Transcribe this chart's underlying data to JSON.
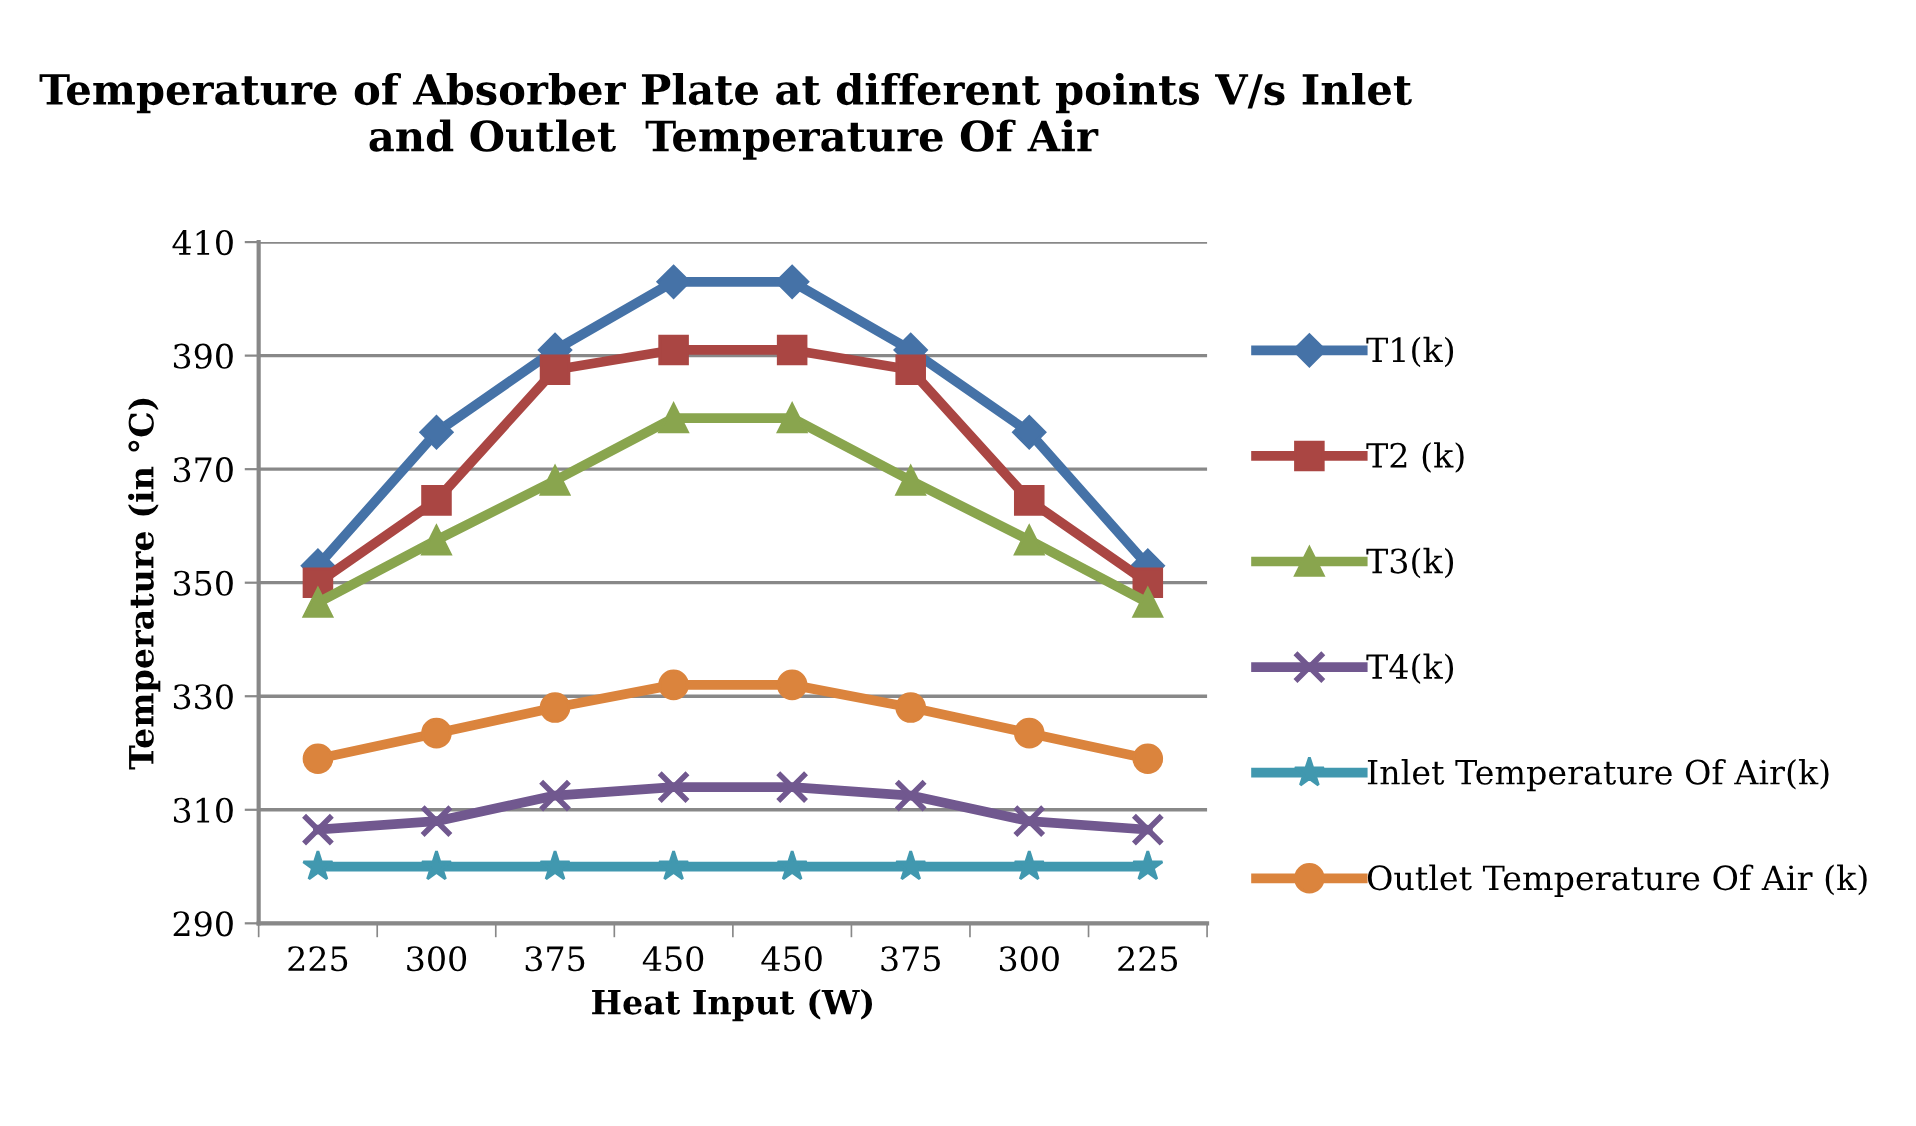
{
  "chart_data": {
    "type": "line",
    "title": "Temperature of Absorber Plate at different points V/s Inlet  and Outlet  Temperature Of Air",
    "xlabel": "Heat Input (W)",
    "ylabel": "Temperature (in °C)",
    "categories": [
      "225",
      "300",
      "375",
      "450",
      "450",
      "375",
      "300",
      "225"
    ],
    "ylim": [
      290,
      410
    ],
    "yticks": [
      290,
      310,
      330,
      350,
      370,
      390,
      410
    ],
    "grid": "y",
    "legend": "right",
    "series": [
      {
        "name": "T1(k)",
        "color": "#4572a7",
        "marker": "diamond",
        "values": [
          353,
          376.5,
          391,
          403,
          403,
          391,
          376.5,
          353
        ]
      },
      {
        "name": "T2 (k)",
        "color": "#aa4643",
        "marker": "square",
        "values": [
          350,
          364.5,
          387.5,
          391,
          391,
          387.5,
          364.5,
          350
        ]
      },
      {
        "name": "T3(k)",
        "color": "#89a54e",
        "marker": "triangle",
        "values": [
          346.5,
          357.5,
          368,
          379,
          379,
          368,
          357.5,
          346.5
        ]
      },
      {
        "name": "T4(k)",
        "color": "#71588f",
        "marker": "cross",
        "values": [
          306.5,
          308,
          312.5,
          314,
          314,
          312.5,
          308,
          306.5
        ]
      },
      {
        "name": "Inlet Temperature Of Air(k)",
        "color": "#4198af",
        "marker": "star",
        "values": [
          300,
          300,
          300,
          300,
          300,
          300,
          300,
          300
        ]
      },
      {
        "name": "Outlet Temperature Of Air (k)",
        "color": "#db843d",
        "marker": "circle",
        "values": [
          319,
          323.5,
          328,
          332,
          332,
          328,
          323.5,
          319
        ]
      }
    ]
  }
}
